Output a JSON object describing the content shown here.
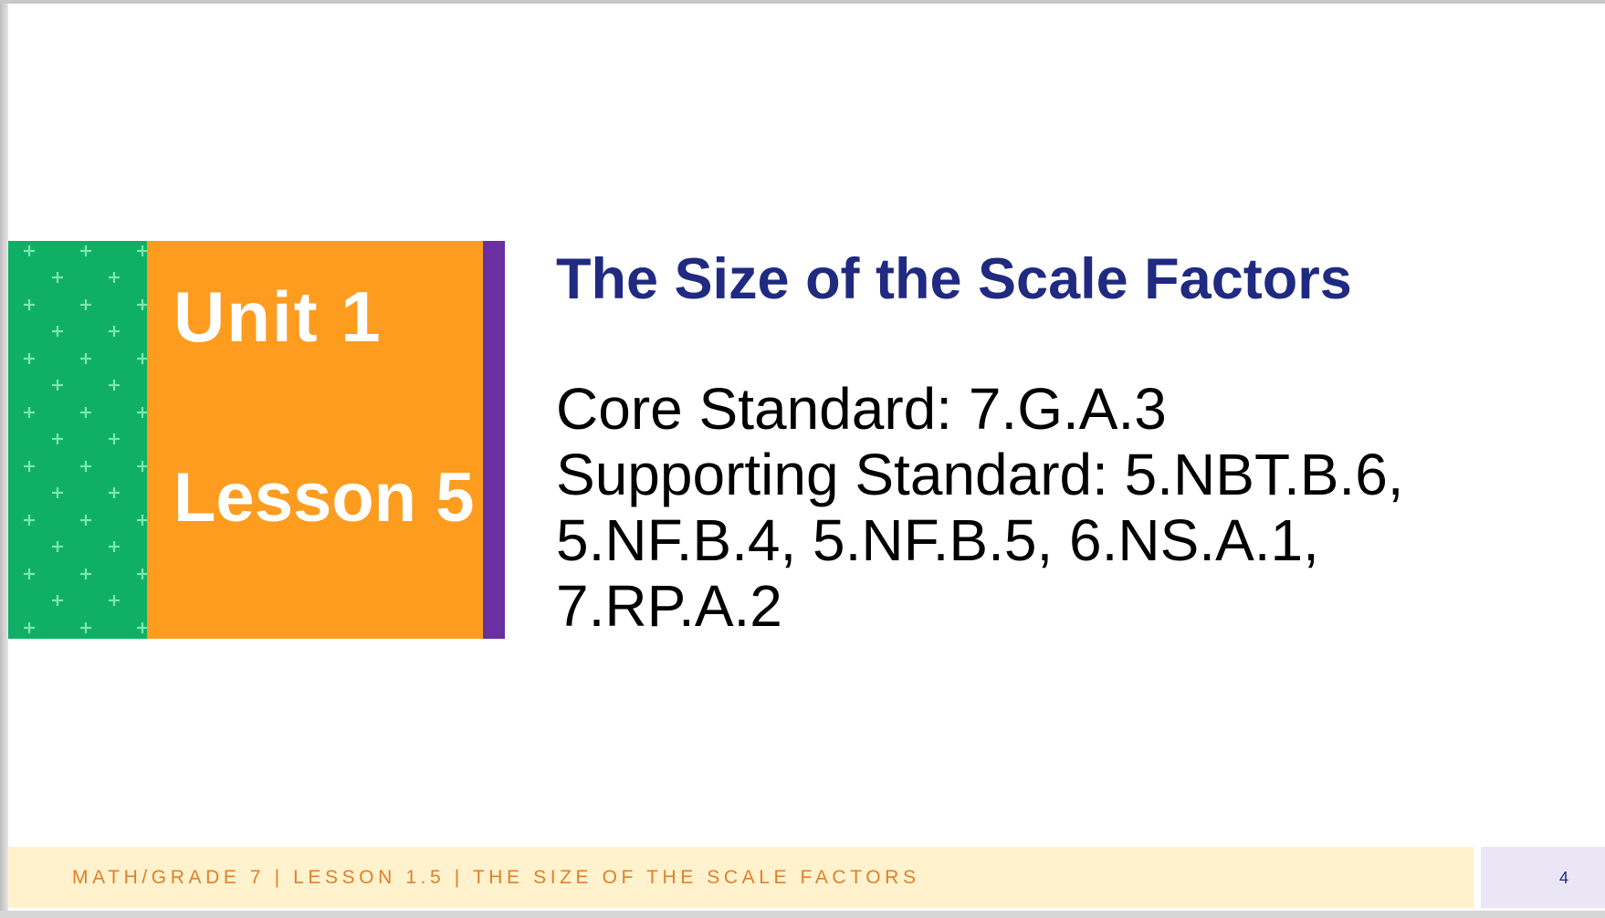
{
  "slide": {
    "unit_label": "Unit 1",
    "lesson_label": "Lesson 5",
    "title": "The Size of the Scale Factors",
    "core_standard": "Core Standard: 7.G.A.3",
    "supporting_standard": "Supporting Standard: 5.NBT.B.6, 5.NF.B.4, 5.NF.B.5, 6.NS.A.1, 7.RP.A.2"
  },
  "footer": {
    "text": "MATH/GRADE 7 | LESSON 1.5 | THE SIZE OF THE SCALE FACTORS",
    "page_number": "4"
  },
  "colors": {
    "green": "#0fb066",
    "orange": "#fd9c1f",
    "purple": "#6a2fa0",
    "title": "#1f2a80",
    "footer_bg": "#fff2cc",
    "footer_text": "#e07f2a"
  },
  "icons": {
    "pattern": "plus-pattern"
  }
}
